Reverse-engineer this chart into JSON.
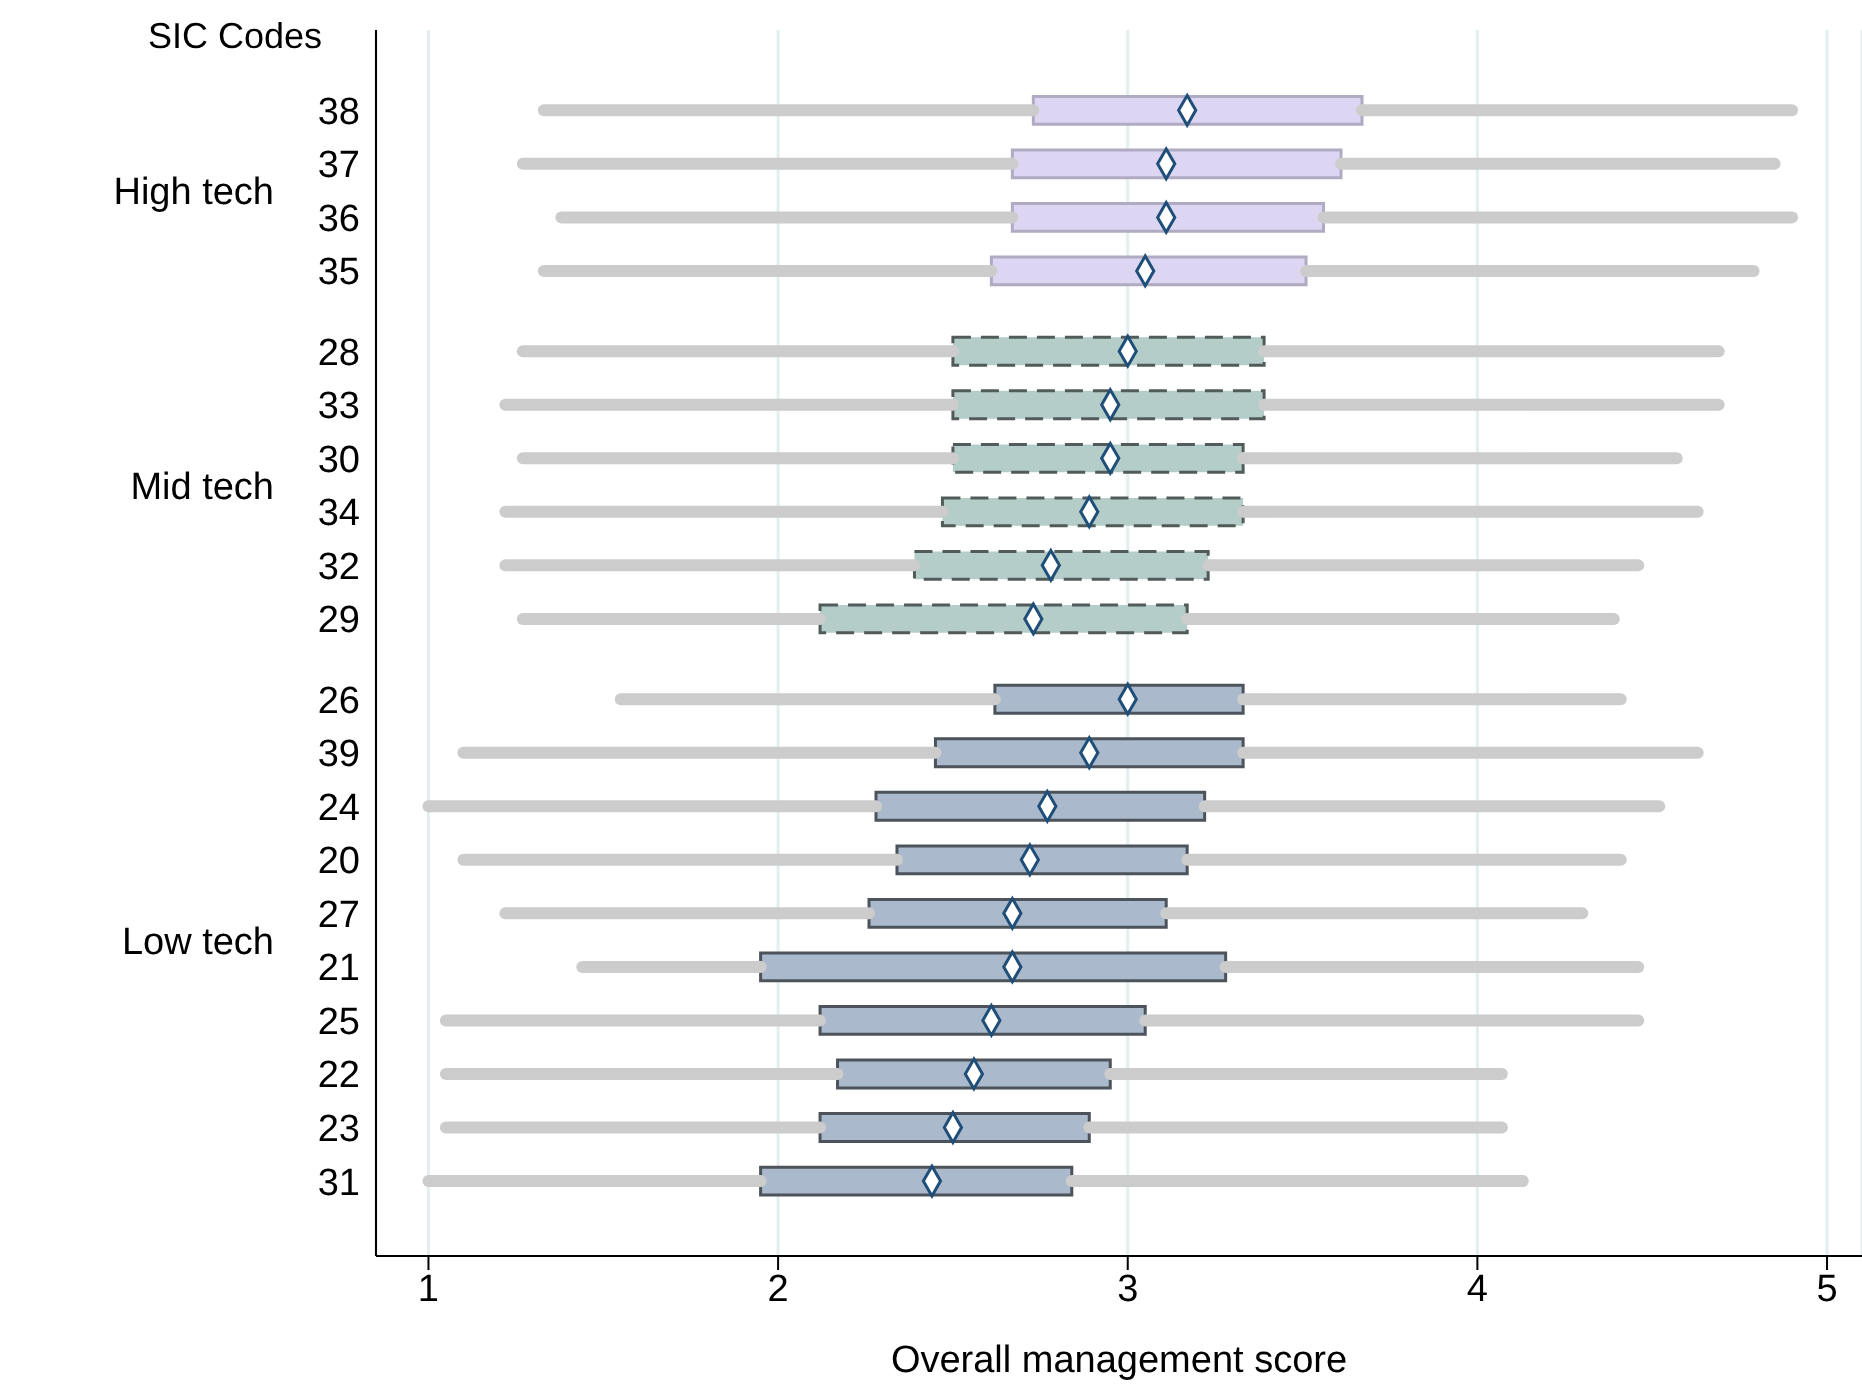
{
  "chart_data": {
    "type": "box",
    "orientation": "horizontal",
    "xlabel": "Overall management score",
    "ylabel": "SIC Codes",
    "categories": [
      "38",
      "37",
      "36",
      "35",
      "28",
      "33",
      "30",
      "34",
      "32",
      "29",
      "26",
      "39",
      "24",
      "20",
      "27",
      "21",
      "25",
      "22",
      "23",
      "31"
    ],
    "annotations": [
      "High tech",
      "Mid tech",
      "Low tech"
    ],
    "xlim": [
      0.85,
      5.1
    ],
    "xticks": [
      1,
      2,
      3,
      4,
      5
    ],
    "grid": "x",
    "marker": "diamond",
    "series": [
      {
        "color": "#dcd6f2",
        "line_style": "solid",
        "boxes": [
          {
            "low": 1.33,
            "q1": 2.73,
            "median": 3.17,
            "q3": 3.67,
            "high": 4.9
          },
          {
            "low": 1.27,
            "q1": 2.67,
            "median": 3.11,
            "q3": 3.61,
            "high": 4.85
          },
          {
            "low": 1.38,
            "q1": 2.67,
            "median": 3.11,
            "q3": 3.56,
            "high": 4.9
          },
          {
            "low": 1.33,
            "q1": 2.61,
            "median": 3.05,
            "q3": 3.51,
            "high": 4.79
          },
          null,
          null,
          null,
          null,
          null,
          null,
          null,
          null,
          null,
          null,
          null,
          null,
          null,
          null,
          null,
          null
        ]
      },
      {
        "color": "#b5cdc8",
        "line_style": "dashed",
        "boxes": [
          null,
          null,
          null,
          null,
          {
            "low": 1.27,
            "q1": 2.5,
            "median": 3.0,
            "q3": 3.39,
            "high": 4.69
          },
          {
            "low": 1.22,
            "q1": 2.5,
            "median": 2.95,
            "q3": 3.39,
            "high": 4.69
          },
          {
            "low": 1.27,
            "q1": 2.5,
            "median": 2.95,
            "q3": 3.33,
            "high": 4.57
          },
          {
            "low": 1.22,
            "q1": 2.47,
            "median": 2.89,
            "q3": 3.33,
            "high": 4.63
          },
          {
            "low": 1.22,
            "q1": 2.39,
            "median": 2.78,
            "q3": 3.23,
            "high": 4.46
          },
          {
            "low": 1.27,
            "q1": 2.12,
            "median": 2.73,
            "q3": 3.17,
            "high": 4.39
          },
          null,
          null,
          null,
          null,
          null,
          null,
          null,
          null,
          null,
          null
        ]
      },
      {
        "color": "#aab9cb",
        "line_style": "solid",
        "boxes": [
          null,
          null,
          null,
          null,
          null,
          null,
          null,
          null,
          null,
          null,
          {
            "low": 1.55,
            "q1": 2.62,
            "median": 3.0,
            "q3": 3.33,
            "high": 4.41
          },
          {
            "low": 1.1,
            "q1": 2.45,
            "median": 2.89,
            "q3": 3.33,
            "high": 4.63
          },
          {
            "low": 1.0,
            "q1": 2.28,
            "median": 2.77,
            "q3": 3.22,
            "high": 4.52
          },
          {
            "low": 1.1,
            "q1": 2.34,
            "median": 2.72,
            "q3": 3.17,
            "high": 4.41
          },
          {
            "low": 1.22,
            "q1": 2.26,
            "median": 2.67,
            "q3": 3.11,
            "high": 4.3
          },
          {
            "low": 1.44,
            "q1": 1.95,
            "median": 2.67,
            "q3": 3.28,
            "high": 4.46
          },
          {
            "low": 1.05,
            "q1": 2.12,
            "median": 2.61,
            "q3": 3.05,
            "high": 4.46
          },
          {
            "low": 1.05,
            "q1": 2.17,
            "median": 2.56,
            "q3": 2.95,
            "high": 4.07
          },
          {
            "low": 1.05,
            "q1": 2.12,
            "median": 2.5,
            "q3": 2.89,
            "high": 4.07
          },
          {
            "low": 1.0,
            "q1": 1.95,
            "median": 2.44,
            "q3": 2.84,
            "high": 4.13
          }
        ]
      }
    ]
  }
}
